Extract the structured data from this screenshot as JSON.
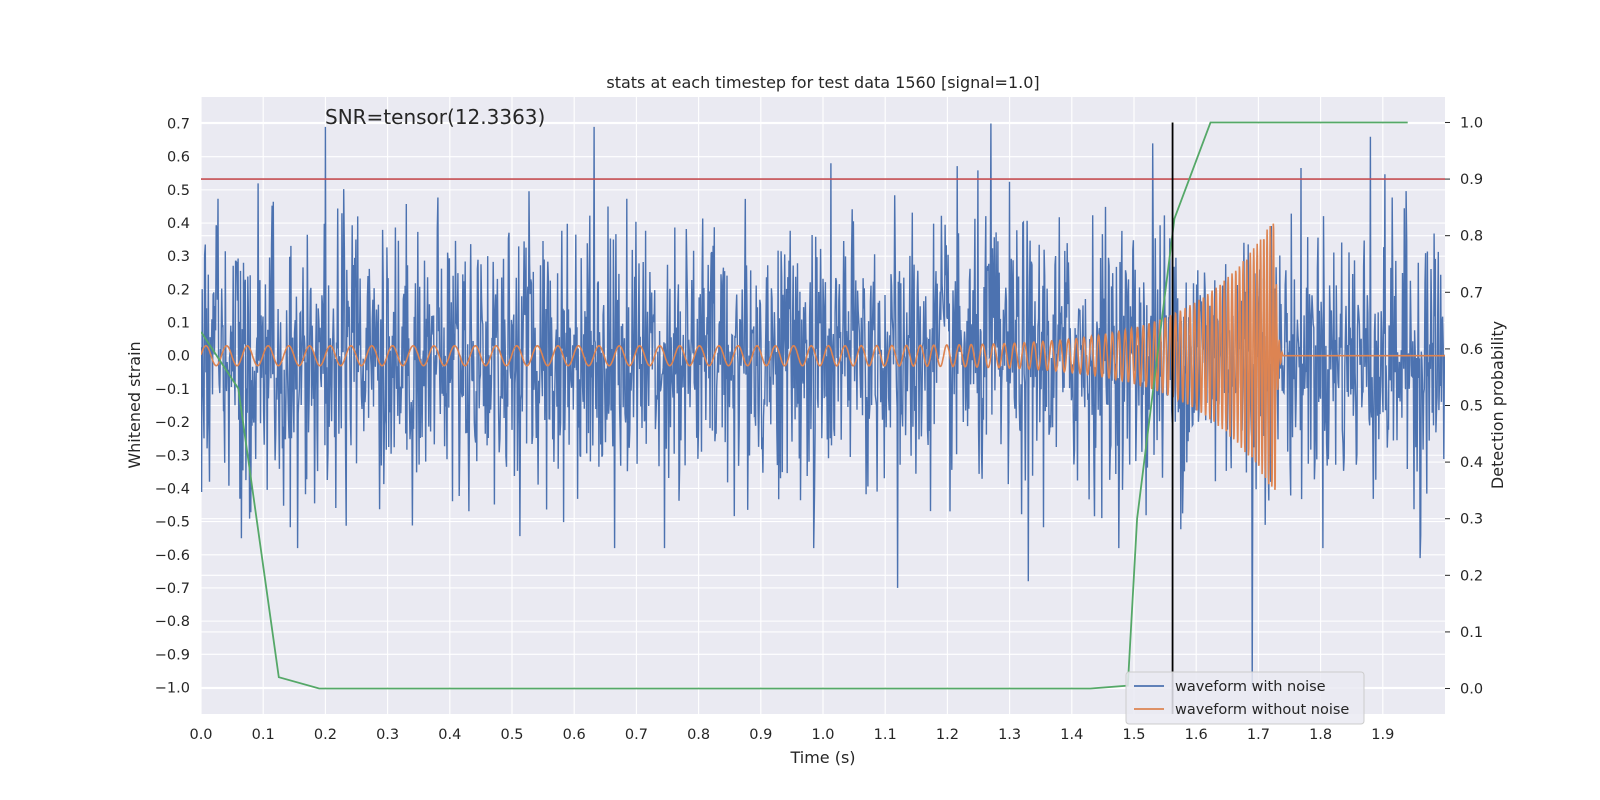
{
  "chart_data": {
    "type": "line",
    "title": "stats at each timestep for test data 1560 [signal=1.0]",
    "xlabel": "Time (s)",
    "ylabel": "Whitened strain",
    "y2label": "Detection probability",
    "annotation": "SNR=tensor(12.3363)",
    "xlim": [
      0.0,
      2.0
    ],
    "ylim": [
      -1.08,
      0.78
    ],
    "y2lim": [
      -0.045,
      1.045
    ],
    "x_ticks": [
      "0.0",
      "0.1",
      "0.2",
      "0.3",
      "0.4",
      "0.5",
      "0.6",
      "0.7",
      "0.8",
      "0.9",
      "1.0",
      "1.1",
      "1.2",
      "1.3",
      "1.4",
      "1.5",
      "1.6",
      "1.7",
      "1.8",
      "1.9"
    ],
    "y_ticks": [
      "0.7",
      "0.6",
      "0.5",
      "0.4",
      "0.3",
      "0.2",
      "0.1",
      "0.0",
      "−0.1",
      "−0.2",
      "−0.3",
      "−0.4",
      "−0.5",
      "−0.6",
      "−0.7",
      "−0.8",
      "−0.9",
      "−1.0"
    ],
    "y2_ticks": [
      "1.0",
      "0.9",
      "0.8",
      "0.7",
      "0.6",
      "0.5",
      "0.4",
      "0.3",
      "0.2",
      "0.1",
      "0.0"
    ],
    "grid": true,
    "legend_position": "lower-right",
    "series": [
      {
        "name": "waveform with noise",
        "color": "#4c72b0",
        "noise_std": 0.2,
        "extreme_values": [
          [
            0.2,
            0.69
          ],
          [
            0.632,
            0.69
          ],
          [
            1.27,
            0.7
          ],
          [
            1.53,
            0.64
          ],
          [
            1.88,
            0.66
          ],
          [
            1.12,
            -0.7
          ],
          [
            1.69,
            -1.0
          ],
          [
            1.33,
            -0.68
          ],
          [
            0.665,
            -0.58
          ],
          [
            0.985,
            -0.58
          ],
          [
            0.065,
            -0.55
          ],
          [
            1.96,
            -0.61
          ]
        ]
      },
      {
        "name": "waveform without noise",
        "color": "#dd8452",
        "amplitude_start": 0.03,
        "amplitude_end": 0.42,
        "frequency_start_hz": 30,
        "frequency_end_hz": 200,
        "merger_time": 1.727,
        "flat_value_after_merger": 0.0
      },
      {
        "name": "detection probability",
        "color": "#55a868",
        "axis": "right",
        "x": [
          0.0,
          0.06,
          0.125,
          0.19,
          1.43,
          1.49,
          1.505,
          1.565,
          1.623,
          1.94
        ],
        "y": [
          0.63,
          0.53,
          0.02,
          0.0,
          0.0,
          0.005,
          0.3,
          0.83,
          1.0,
          1.0
        ]
      }
    ],
    "threshold_line": {
      "axis": "right",
      "value": 0.9,
      "color": "#c44e52"
    },
    "vertical_marker": {
      "x": 1.562,
      "color": "#000000"
    }
  }
}
